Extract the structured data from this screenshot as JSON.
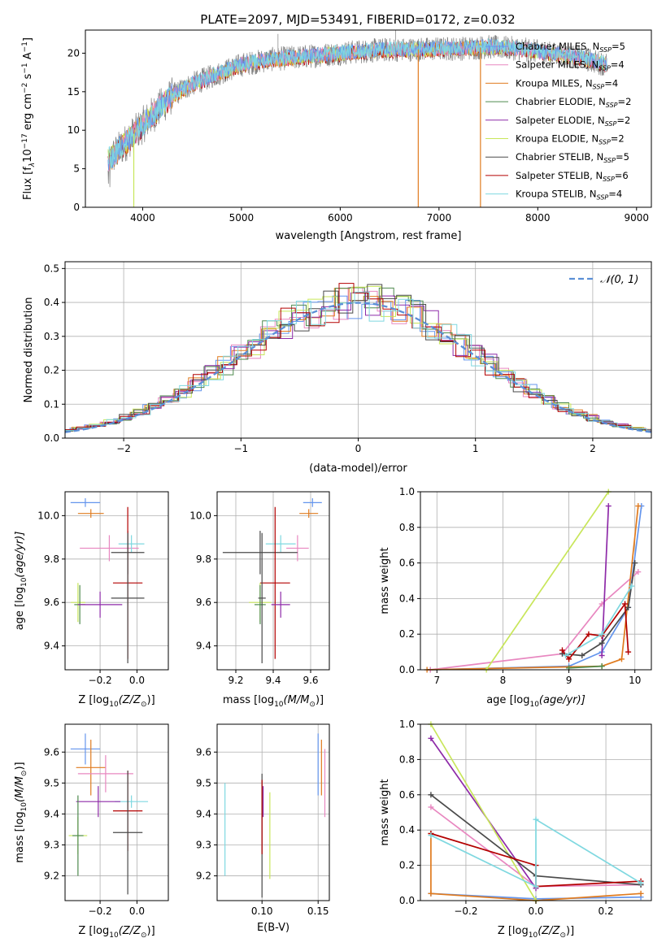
{
  "figure": {
    "title": "PLATE=2097, MJD=53491, FIBERID=0172, z=0.032"
  },
  "series_colors": {
    "chabrier_miles": "#6495ed",
    "salpeter_miles": "#e887c0",
    "kroupa_miles": "#e07b1f",
    "chabrier_elodie": "#4e8a4e",
    "salpeter_elodie": "#8e2aa8",
    "kroupa_elodie": "#c8e65a",
    "chabrier_stelib": "#4a4a4a",
    "salpeter_stelib": "#b30000",
    "kroupa_stelib": "#7fd8e0"
  },
  "chart_data": [
    {
      "id": "spectrum",
      "type": "line",
      "xlabel": "wavelength [Angstrom, rest frame]",
      "ylabel": "Flux [f_λ 10^-17 erg cm^-2 s^-1 A^-1]",
      "ylabel_parts": {
        "a": "Flux [f",
        "b": "λ",
        "c": "10",
        "d": "−17",
        "e": " erg cm",
        "f": "−2",
        "g": " s",
        "h": "−1",
        "i": " A",
        "j": "−1",
        "k": "]"
      },
      "xlim": [
        3420,
        9150
      ],
      "ylim": [
        0,
        23
      ],
      "xticks": [
        4000,
        5000,
        6000,
        7000,
        8000,
        9000
      ],
      "yticks": [
        0,
        5,
        10,
        15,
        20
      ],
      "legend_position": "top-right",
      "legend": [
        {
          "prefix": "Chabrier MILES, N",
          "sub": "SSP",
          "suffix": "=5",
          "color_key": "chabrier_miles"
        },
        {
          "prefix": "Salpeter MILES, N",
          "sub": "SSP",
          "suffix": "=4",
          "color_key": "salpeter_miles"
        },
        {
          "prefix": "Kroupa MILES, N",
          "sub": "SSP",
          "suffix": "=4",
          "color_key": "kroupa_miles"
        },
        {
          "prefix": "Chabrier ELODIE, N",
          "sub": "SSP",
          "suffix": "=2",
          "color_key": "chabrier_elodie"
        },
        {
          "prefix": "Salpeter ELODIE, N",
          "sub": "SSP",
          "suffix": "=2",
          "color_key": "salpeter_elodie"
        },
        {
          "prefix": "Kroupa ELODIE, N",
          "sub": "SSP",
          "suffix": "=2",
          "color_key": "kroupa_elodie"
        },
        {
          "prefix": "Chabrier STELIB, N",
          "sub": "SSP",
          "suffix": "=5",
          "color_key": "chabrier_stelib"
        },
        {
          "prefix": "Salpeter STELIB, N",
          "sub": "SSP",
          "suffix": "=6",
          "color_key": "salpeter_stelib"
        },
        {
          "prefix": "Kroupa STELIB, N",
          "sub": "SSP",
          "suffix": "=4",
          "color_key": "kroupa_stelib"
        }
      ],
      "continuum_approx": {
        "x": [
          3650,
          3800,
          3950,
          4100,
          4300,
          4500,
          4800,
          5000,
          5300,
          5600,
          6000,
          6400,
          6800,
          7200,
          7500,
          7800,
          8100,
          8400,
          8700
        ],
        "y": [
          6,
          8,
          10,
          12,
          14.5,
          16,
          17.5,
          18.5,
          19.2,
          19.5,
          20,
          20.4,
          20.5,
          20.6,
          20.8,
          20.6,
          20.0,
          19.5,
          18.5
        ]
      },
      "dropouts": [
        {
          "x": 6790,
          "color_key": "kroupa_miles"
        },
        {
          "x": 7420,
          "color_key": "kroupa_miles"
        },
        {
          "x": 3910,
          "color_key": "kroupa_elodie"
        }
      ]
    },
    {
      "id": "residual_hist",
      "type": "histogram",
      "xlabel": "(data-model)/error",
      "ylabel": "Normed distribution",
      "xlim": [
        -2.5,
        2.5
      ],
      "ylim": [
        0,
        0.52
      ],
      "xticks": [
        -2,
        -1,
        0,
        1,
        2
      ],
      "yticks": [
        0,
        0.1,
        0.2,
        0.3,
        0.4,
        0.5
      ],
      "reference_curve": {
        "label": "𝒩(0, 1)",
        "mu": 0,
        "sigma": 1
      },
      "bins": 45,
      "noise_seed_note": ""
    },
    {
      "id": "age_vs_Z",
      "type": "errorbar",
      "xlabel_parts": {
        "a": "Z [log",
        "b": "10",
        "c": "(Z/Z",
        "d": "⊙",
        "e": ")]"
      },
      "ylabel_parts": {
        "a": "age  [log",
        "b": "10",
        "c": "(age/yr)]"
      },
      "xlim": [
        -0.39,
        0.17
      ],
      "ylim": [
        9.29,
        10.11
      ],
      "xticks": [
        -0.2,
        0.0
      ],
      "yticks": [
        9.4,
        9.6,
        9.8,
        10.0
      ],
      "points": [
        {
          "color_key": "chabrier_miles",
          "x": -0.28,
          "xerr": 0.08,
          "y": 10.06,
          "yerr": 0.02
        },
        {
          "color_key": "kroupa_miles",
          "x": -0.25,
          "xerr": 0.07,
          "y": 10.01,
          "yerr": 0.02
        },
        {
          "color_key": "salpeter_miles",
          "x": -0.15,
          "xerr": 0.16,
          "y": 9.85,
          "yerr": 0.06
        },
        {
          "color_key": "kroupa_stelib",
          "x": -0.03,
          "xerr": 0.07,
          "y": 9.87,
          "yerr": 0.04
        },
        {
          "color_key": "chabrier_stelib",
          "x": -0.05,
          "xerr": 0.09,
          "y": 9.83,
          "yerr": 0.1
        },
        {
          "color_key": "salpeter_stelib",
          "x": -0.05,
          "xerr": 0.08,
          "y": 9.69,
          "yerr": 0.35
        },
        {
          "color_key": "kroupa_elodie",
          "x": -0.32,
          "xerr": 0.04,
          "y": 9.6,
          "yerr": 0.09
        },
        {
          "color_key": "chabrier_elodie",
          "x": -0.31,
          "xerr": 0.03,
          "y": 9.59,
          "yerr": 0.09
        },
        {
          "color_key": "salpeter_elodie",
          "x": -0.2,
          "xerr": 0.12,
          "y": 9.59,
          "yerr": 0.06
        },
        {
          "color_key": "chabrier_stelib",
          "x": -0.05,
          "xerr": 0.09,
          "y": 9.62,
          "yerr": 0.3
        }
      ]
    },
    {
      "id": "age_vs_mass",
      "type": "errorbar",
      "xlabel_parts": {
        "a": "mass [log",
        "b": "10",
        "c": "(M/M",
        "d": "⊙",
        "e": ")]"
      },
      "xlim": [
        9.1,
        9.7
      ],
      "ylim": [
        9.29,
        10.11
      ],
      "xticks": [
        9.2,
        9.4,
        9.6
      ],
      "yticks": [
        9.4,
        9.6,
        9.8,
        10.0
      ],
      "points": [
        {
          "color_key": "chabrier_miles",
          "x": 9.61,
          "xerr": 0.05,
          "y": 10.06,
          "yerr": 0.02
        },
        {
          "color_key": "kroupa_miles",
          "x": 9.59,
          "xerr": 0.05,
          "y": 10.01,
          "yerr": 0.02
        },
        {
          "color_key": "salpeter_miles",
          "x": 9.53,
          "xerr": 0.06,
          "y": 9.85,
          "yerr": 0.06
        },
        {
          "color_key": "kroupa_stelib",
          "x": 9.44,
          "xerr": 0.08,
          "y": 9.87,
          "yerr": 0.04
        },
        {
          "color_key": "chabrier_stelib",
          "x": 9.33,
          "xerr": 0.2,
          "y": 9.83,
          "yerr": 0.1
        },
        {
          "color_key": "salpeter_stelib",
          "x": 9.41,
          "xerr": 0.08,
          "y": 9.69,
          "yerr": 0.35
        },
        {
          "color_key": "kroupa_elodie",
          "x": 9.33,
          "xerr": 0.06,
          "y": 9.6,
          "yerr": 0.09
        },
        {
          "color_key": "chabrier_elodie",
          "x": 9.33,
          "xerr": 0.03,
          "y": 9.59,
          "yerr": 0.09
        },
        {
          "color_key": "salpeter_elodie",
          "x": 9.44,
          "xerr": 0.05,
          "y": 9.59,
          "yerr": 0.06
        },
        {
          "color_key": "chabrier_stelib",
          "x": 9.34,
          "xerr": 0.02,
          "y": 9.62,
          "yerr": 0.3
        }
      ]
    },
    {
      "id": "weight_vs_age",
      "type": "line",
      "xlabel_parts": {
        "a": "age  [log",
        "b": "10",
        "c": "(age/yr)]"
      },
      "ylabel": "mass weight",
      "xlim": [
        6.75,
        10.25
      ],
      "ylim": [
        0,
        1
      ],
      "xticks": [
        7,
        8,
        9,
        10
      ],
      "yticks": [
        0.0,
        0.2,
        0.4,
        0.6,
        0.8,
        1.0
      ],
      "series": [
        {
          "color_key": "chabrier_miles",
          "x": [
            6.9,
            9.0,
            9.5,
            9.9,
            10.1
          ],
          "y": [
            0.0,
            0.02,
            0.1,
            0.35,
            0.92
          ]
        },
        {
          "color_key": "salpeter_miles",
          "x": [
            6.9,
            8.9,
            9.5,
            10.05
          ],
          "y": [
            0.0,
            0.09,
            0.37,
            0.55
          ]
        },
        {
          "color_key": "kroupa_miles",
          "x": [
            6.85,
            9.5,
            9.8,
            10.05
          ],
          "y": [
            0.0,
            0.02,
            0.06,
            0.92
          ]
        },
        {
          "color_key": "chabrier_elodie",
          "x": [
            9.0,
            9.5
          ],
          "y": [
            0.01,
            0.02
          ]
        },
        {
          "color_key": "salpeter_elodie",
          "x": [
            9.5,
            9.6
          ],
          "y": [
            0.08,
            0.92
          ]
        },
        {
          "color_key": "kroupa_elodie",
          "x": [
            7.75,
            9.6
          ],
          "y": [
            0.0,
            1.0
          ]
        },
        {
          "color_key": "chabrier_stelib",
          "x": [
            8.9,
            9.2,
            9.5,
            9.9,
            10.0
          ],
          "y": [
            0.09,
            0.08,
            0.15,
            0.35,
            0.6
          ]
        },
        {
          "color_key": "salpeter_stelib",
          "x": [
            8.9,
            9.0,
            9.3,
            9.5,
            9.85,
            9.9
          ],
          "y": [
            0.11,
            0.06,
            0.2,
            0.19,
            0.37,
            0.1
          ]
        },
        {
          "color_key": "kroupa_stelib",
          "x": [
            8.95,
            9.5,
            9.95
          ],
          "y": [
            0.08,
            0.2,
            0.47
          ]
        }
      ]
    },
    {
      "id": "mass_vs_Z",
      "type": "errorbar",
      "xlabel_parts": {
        "a": "Z [log",
        "b": "10",
        "c": "(Z/Z",
        "d": "⊙",
        "e": ")]"
      },
      "ylabel_parts": {
        "a": "mass [log",
        "b": "10",
        "c": "(M/M",
        "d": "⊙",
        "e": ")]"
      },
      "xlim": [
        -0.39,
        0.17
      ],
      "ylim": [
        9.12,
        9.69
      ],
      "xticks": [
        -0.2,
        0.0
      ],
      "yticks": [
        9.2,
        9.3,
        9.4,
        9.5,
        9.6
      ],
      "points": [
        {
          "color_key": "chabrier_miles",
          "x": -0.28,
          "xerr": 0.08,
          "y": 9.61,
          "yerr": 0.05
        },
        {
          "color_key": "kroupa_miles",
          "x": -0.25,
          "xerr": 0.08,
          "y": 9.55,
          "yerr": 0.09
        },
        {
          "color_key": "salpeter_miles",
          "x": -0.17,
          "xerr": 0.15,
          "y": 9.53,
          "yerr": 0.06
        },
        {
          "color_key": "kroupa_stelib",
          "x": -0.03,
          "xerr": 0.09,
          "y": 9.44,
          "yerr": 0.02
        },
        {
          "color_key": "salpeter_elodie",
          "x": -0.21,
          "xerr": 0.12,
          "y": 9.44,
          "yerr": 0.05
        },
        {
          "color_key": "salpeter_stelib",
          "x": -0.05,
          "xerr": 0.08,
          "y": 9.41,
          "yerr": 0.13
        },
        {
          "color_key": "chabrier_stelib",
          "x": -0.05,
          "xerr": 0.08,
          "y": 9.34,
          "yerr": 0.2
        },
        {
          "color_key": "kroupa_elodie",
          "x": -0.32,
          "xerr": 0.05,
          "y": 9.33,
          "yerr": 0.06
        },
        {
          "color_key": "chabrier_elodie",
          "x": -0.32,
          "xerr": 0.03,
          "y": 9.33,
          "yerr": 0.13
        }
      ]
    },
    {
      "id": "mass_vs_ebv",
      "type": "errorbar",
      "xlabel": "E(B-V)",
      "xlim": [
        0.06,
        0.16
      ],
      "ylim": [
        9.12,
        9.69
      ],
      "xticks": [
        0.1,
        0.15
      ],
      "yticks": [
        9.2,
        9.3,
        9.4,
        9.5,
        9.6
      ],
      "points": [
        {
          "color_key": "kroupa_stelib",
          "x": 0.067,
          "y": 9.35,
          "yerr": 0.15
        },
        {
          "color_key": "chabrier_stelib",
          "x": 0.1,
          "y": 9.33,
          "yerr": 0.2
        },
        {
          "color_key": "salpeter_stelib",
          "x": 0.1,
          "y": 9.39,
          "yerr": 0.12
        },
        {
          "color_key": "salpeter_elodie",
          "x": 0.101,
          "y": 9.44,
          "yerr": 0.05
        },
        {
          "color_key": "kroupa_elodie",
          "x": 0.107,
          "y": 9.33,
          "yerr": 0.14
        },
        {
          "color_key": "chabrier_miles",
          "x": 0.15,
          "y": 9.56,
          "yerr": 0.1
        },
        {
          "color_key": "kroupa_miles",
          "x": 0.153,
          "y": 9.55,
          "yerr": 0.09
        },
        {
          "color_key": "salpeter_miles",
          "x": 0.156,
          "y": 9.5,
          "yerr": 0.11
        }
      ]
    },
    {
      "id": "weight_vs_Z",
      "type": "line",
      "xlabel_parts": {
        "a": "Z [log",
        "b": "10",
        "c": "(Z/Z",
        "d": "⊙",
        "e": ")]"
      },
      "ylabel": "mass weight",
      "xlim": [
        -0.33,
        0.33
      ],
      "ylim": [
        0,
        1
      ],
      "xticks": [
        -0.2,
        0.0,
        0.2
      ],
      "yticks": [
        0.0,
        0.2,
        0.4,
        0.6,
        0.8,
        1.0
      ],
      "series": [
        {
          "color_key": "chabrier_miles",
          "x": [
            -0.3,
            0.0,
            0.3
          ],
          "y": [
            0.04,
            0.01,
            0.02
          ]
        },
        {
          "color_key": "salpeter_miles",
          "x": [
            -0.3,
            0.0,
            0.3
          ],
          "y": [
            0.53,
            0.08,
            0.09
          ]
        },
        {
          "color_key": "kroupa_miles",
          "x": [
            -0.3,
            -0.3,
            0.0,
            0.3
          ],
          "y": [
            0.38,
            0.04,
            0.0,
            0.04
          ]
        },
        {
          "color_key": "salpeter_elodie",
          "x": [
            -0.3,
            0.0
          ],
          "y": [
            0.92,
            0.07
          ]
        },
        {
          "color_key": "kroupa_elodie",
          "x": [
            -0.3,
            0.0
          ],
          "y": [
            1.0,
            0.0
          ]
        },
        {
          "color_key": "chabrier_stelib",
          "x": [
            -0.3,
            0.0,
            0.3
          ],
          "y": [
            0.6,
            0.14,
            0.09
          ]
        },
        {
          "color_key": "salpeter_stelib",
          "x": [
            -0.3,
            0.0,
            0.0,
            0.3
          ],
          "y": [
            0.38,
            0.2,
            0.08,
            0.11
          ]
        },
        {
          "color_key": "kroupa_stelib",
          "x": [
            -0.3,
            0.0,
            0.0,
            0.3
          ],
          "y": [
            0.37,
            0.08,
            0.46,
            0.1
          ]
        }
      ]
    }
  ]
}
